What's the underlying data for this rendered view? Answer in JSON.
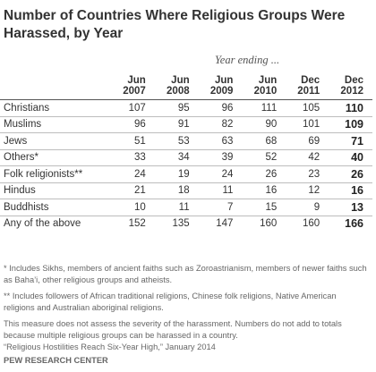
{
  "title": "Number of Countries Where Religious Groups Were Harassed, by Year",
  "subtitle": "Year ending ...",
  "chart_data": {
    "type": "table",
    "title": "Number of Countries Where Religious Groups Were Harassed, by Year",
    "subtitle": "Year ending ...",
    "columns": [
      {
        "line1": "Jun",
        "line2": "2007"
      },
      {
        "line1": "Jun",
        "line2": "2008"
      },
      {
        "line1": "Jun",
        "line2": "2009"
      },
      {
        "line1": "Jun",
        "line2": "2010"
      },
      {
        "line1": "Dec",
        "line2": "2011"
      },
      {
        "line1": "Dec",
        "line2": "2012"
      }
    ],
    "rows": [
      {
        "label": "Christians",
        "values": [
          107,
          95,
          96,
          111,
          105,
          110
        ]
      },
      {
        "label": "Muslims",
        "values": [
          96,
          91,
          82,
          90,
          101,
          109
        ]
      },
      {
        "label": "Jews",
        "values": [
          51,
          53,
          63,
          68,
          69,
          71
        ]
      },
      {
        "label": "Others*",
        "values": [
          33,
          34,
          39,
          52,
          42,
          40
        ]
      },
      {
        "label": "Folk religionists**",
        "values": [
          24,
          19,
          24,
          26,
          23,
          26
        ]
      },
      {
        "label": "Hindus",
        "values": [
          21,
          18,
          11,
          16,
          12,
          16
        ]
      },
      {
        "label": "Buddhists",
        "values": [
          10,
          11,
          7,
          15,
          9,
          13
        ]
      },
      {
        "label": "Any of the above",
        "values": [
          152,
          135,
          147,
          160,
          160,
          166
        ]
      }
    ]
  },
  "notes": [
    "* Includes Sikhs, members of ancient faiths such as Zoroastrianism, members of newer faiths such as Baha’i, other religious groups and atheists.",
    "** Includes followers of African traditional religions, Chinese folk religions, Native American religions and Australian aboriginal religions.",
    "This measure does not assess the severity of the harassment. Numbers do not add to totals because multiple religious groups can be harassed in a country."
  ],
  "source": "“Religious Hostilities Reach Six-Year High,” January 2014",
  "brand": "PEW RESEARCH CENTER"
}
